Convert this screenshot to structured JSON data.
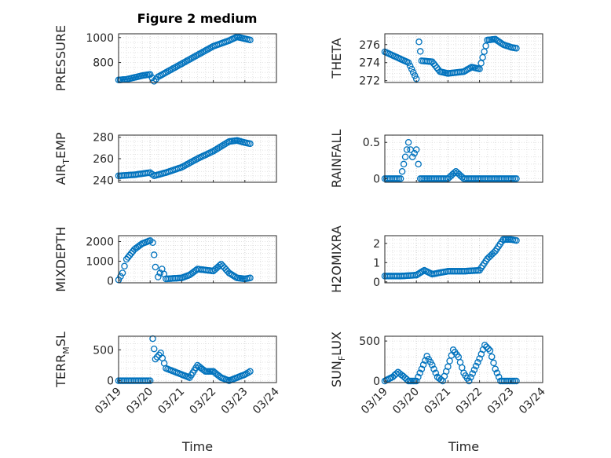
{
  "figure": {
    "title": "Figure 2 medium",
    "marker_color": "#0072BD",
    "grid": true,
    "grid_style": "dotted"
  },
  "chart_data": [
    {
      "type": "scatter",
      "ylabel": "PRESSURE",
      "xlabel": "",
      "xlim": [
        "03/19",
        "03/24"
      ],
      "ylim": [
        640,
        1030
      ],
      "yticks": [
        800,
        1000
      ],
      "x": [
        "03/19",
        "03/20",
        "03/21",
        "03/22",
        "03/22 12:00",
        "03/23"
      ],
      "points": [
        [
          "03/19 00:00",
          660
        ],
        [
          "03/19 06:00",
          665
        ],
        [
          "03/19 12:00",
          680
        ],
        [
          "03/19 18:00",
          695
        ],
        [
          "03/20 00:00",
          705
        ],
        [
          "03/20 03:00",
          650
        ],
        [
          "03/20 06:00",
          685
        ],
        [
          "03/20 12:00",
          720
        ],
        [
          "03/21 00:00",
          790
        ],
        [
          "03/21 12:00",
          860
        ],
        [
          "03/22 00:00",
          930
        ],
        [
          "03/22 12:00",
          975
        ],
        [
          "03/22 18:00",
          1005
        ],
        [
          "03/23 00:00",
          990
        ],
        [
          "03/23 04:00",
          980
        ]
      ]
    },
    {
      "type": "scatter",
      "ylabel": "THETA",
      "xlabel": "",
      "xlim": [
        "03/19",
        "03/24"
      ],
      "ylim": [
        271.8,
        277.2
      ],
      "yticks": [
        272,
        274,
        276
      ],
      "points": [
        [
          "03/19 00:00",
          275.2
        ],
        [
          "03/19 06:00",
          274.8
        ],
        [
          "03/19 12:00",
          274.4
        ],
        [
          "03/19 18:00",
          274.0
        ],
        [
          "03/20 00:00",
          272.2
        ],
        [
          "03/20 02:00",
          276.3
        ],
        [
          "03/20 04:00",
          274.2
        ],
        [
          "03/20 12:00",
          274.1
        ],
        [
          "03/20 18:00",
          273.0
        ],
        [
          "03/21 00:00",
          272.8
        ],
        [
          "03/21 12:00",
          273.0
        ],
        [
          "03/21 18:00",
          273.5
        ],
        [
          "03/22 00:00",
          273.3
        ],
        [
          "03/22 06:00",
          276.5
        ],
        [
          "03/22 12:00",
          276.6
        ],
        [
          "03/22 18:00",
          276.0
        ],
        [
          "03/23 00:00",
          275.7
        ],
        [
          "03/23 04:00",
          275.6
        ]
      ]
    },
    {
      "type": "scatter",
      "ylabel": "AIR_TEMP",
      "xlabel": "",
      "xlim": [
        "03/19",
        "03/24"
      ],
      "ylim": [
        238,
        282
      ],
      "yticks": [
        240,
        260,
        280
      ],
      "points": [
        [
          "03/19 00:00",
          244
        ],
        [
          "03/19 12:00",
          245
        ],
        [
          "03/20 00:00",
          247
        ],
        [
          "03/20 03:00",
          244
        ],
        [
          "03/20 12:00",
          247
        ],
        [
          "03/21 00:00",
          252
        ],
        [
          "03/21 12:00",
          260
        ],
        [
          "03/22 00:00",
          267
        ],
        [
          "03/22 12:00",
          276
        ],
        [
          "03/22 18:00",
          277
        ],
        [
          "03/23 00:00",
          275
        ],
        [
          "03/23 04:00",
          274
        ]
      ]
    },
    {
      "type": "scatter",
      "ylabel": "RAINFALL",
      "xlabel": "",
      "xlim": [
        "03/19",
        "03/24"
      ],
      "ylim": [
        -0.05,
        0.6
      ],
      "yticks": [
        0,
        0.5
      ],
      "points": [
        [
          "03/19 00:00",
          0
        ],
        [
          "03/19 12:00",
          0
        ],
        [
          "03/19 18:00",
          0.5
        ],
        [
          "03/19 21:00",
          0.3
        ],
        [
          "03/20 00:00",
          0.4
        ],
        [
          "03/20 03:00",
          0
        ],
        [
          "03/20 12:00",
          0
        ],
        [
          "03/21 00:00",
          0
        ],
        [
          "03/21 06:00",
          0.1
        ],
        [
          "03/21 12:00",
          0
        ],
        [
          "03/22 00:00",
          0
        ],
        [
          "03/22 12:00",
          0
        ],
        [
          "03/23 00:00",
          0
        ],
        [
          "03/23 04:00",
          0
        ]
      ]
    },
    {
      "type": "scatter",
      "ylabel": "MIXDEPTH",
      "xlabel": "",
      "xlim": [
        "03/19",
        "03/24"
      ],
      "ylim": [
        -100,
        2300
      ],
      "yticks": [
        0,
        1000,
        2000
      ],
      "points": [
        [
          "03/19 00:00",
          50
        ],
        [
          "03/19 03:00",
          400
        ],
        [
          "03/19 06:00",
          1100
        ],
        [
          "03/19 12:00",
          1600
        ],
        [
          "03/19 18:00",
          1900
        ],
        [
          "03/20 00:00",
          2050
        ],
        [
          "03/20 02:00",
          1950
        ],
        [
          "03/20 04:00",
          700
        ],
        [
          "03/20 06:00",
          200
        ],
        [
          "03/20 09:00",
          600
        ],
        [
          "03/20 12:00",
          100
        ],
        [
          "03/21 00:00",
          150
        ],
        [
          "03/21 06:00",
          300
        ],
        [
          "03/21 12:00",
          600
        ],
        [
          "03/22 00:00",
          500
        ],
        [
          "03/22 06:00",
          850
        ],
        [
          "03/22 12:00",
          400
        ],
        [
          "03/22 18:00",
          150
        ],
        [
          "03/23 00:00",
          100
        ],
        [
          "03/23 04:00",
          150
        ]
      ]
    },
    {
      "type": "scatter",
      "ylabel": "H2OMIXRA",
      "xlabel": "",
      "xlim": [
        "03/19",
        "03/24"
      ],
      "ylim": [
        -0.05,
        2.4
      ],
      "yticks": [
        0,
        1,
        2
      ],
      "points": [
        [
          "03/19 00:00",
          0.3
        ],
        [
          "03/19 12:00",
          0.3
        ],
        [
          "03/20 00:00",
          0.35
        ],
        [
          "03/20 06:00",
          0.6
        ],
        [
          "03/20 12:00",
          0.4
        ],
        [
          "03/21 00:00",
          0.55
        ],
        [
          "03/21 12:00",
          0.55
        ],
        [
          "03/22 00:00",
          0.6
        ],
        [
          "03/22 06:00",
          1.2
        ],
        [
          "03/22 12:00",
          1.6
        ],
        [
          "03/22 18:00",
          2.2
        ],
        [
          "03/23 00:00",
          2.2
        ],
        [
          "03/23 04:00",
          2.15
        ]
      ]
    },
    {
      "type": "scatter",
      "ylabel": "TERR_MSL",
      "xlabel": "Time",
      "xlim": [
        "03/19",
        "03/24"
      ],
      "ylim": [
        -30,
        720
      ],
      "yticks": [
        0,
        500
      ],
      "xticks": [
        "03/19",
        "03/20",
        "03/21",
        "03/22",
        "03/23",
        "03/24"
      ],
      "points": [
        [
          "03/19 00:00",
          0
        ],
        [
          "03/19 12:00",
          0
        ],
        [
          "03/20 00:00",
          0
        ],
        [
          "03/20 02:00",
          680
        ],
        [
          "03/20 04:00",
          350
        ],
        [
          "03/20 08:00",
          450
        ],
        [
          "03/20 12:00",
          200
        ],
        [
          "03/21 00:00",
          100
        ],
        [
          "03/21 06:00",
          50
        ],
        [
          "03/21 12:00",
          250
        ],
        [
          "03/21 18:00",
          150
        ],
        [
          "03/22 00:00",
          150
        ],
        [
          "03/22 06:00",
          50
        ],
        [
          "03/22 12:00",
          0
        ],
        [
          "03/22 18:00",
          50
        ],
        [
          "03/23 00:00",
          100
        ],
        [
          "03/23 04:00",
          150
        ]
      ]
    },
    {
      "type": "scatter",
      "ylabel": "SUN_FLUX",
      "xlabel": "Time",
      "xlim": [
        "03/19",
        "03/24"
      ],
      "ylim": [
        -20,
        560
      ],
      "yticks": [
        0,
        500
      ],
      "xticks": [
        "03/19",
        "03/20",
        "03/21",
        "03/22",
        "03/23",
        "03/24"
      ],
      "points": [
        [
          "03/19 00:00",
          0
        ],
        [
          "03/19 06:00",
          50
        ],
        [
          "03/19 10:00",
          110
        ],
        [
          "03/19 14:00",
          60
        ],
        [
          "03/19 18:00",
          0
        ],
        [
          "03/20 00:00",
          0
        ],
        [
          "03/20 04:00",
          150
        ],
        [
          "03/20 08:00",
          310
        ],
        [
          "03/20 12:00",
          200
        ],
        [
          "03/20 16:00",
          50
        ],
        [
          "03/20 20:00",
          0
        ],
        [
          "03/21 00:00",
          180
        ],
        [
          "03/21 04:00",
          390
        ],
        [
          "03/21 08:00",
          300
        ],
        [
          "03/21 12:00",
          100
        ],
        [
          "03/21 16:00",
          0
        ],
        [
          "03/22 00:00",
          280
        ],
        [
          "03/22 04:00",
          450
        ],
        [
          "03/22 08:00",
          380
        ],
        [
          "03/22 12:00",
          150
        ],
        [
          "03/22 16:00",
          0
        ],
        [
          "03/23 00:00",
          0
        ],
        [
          "03/23 04:00",
          0
        ]
      ]
    }
  ]
}
